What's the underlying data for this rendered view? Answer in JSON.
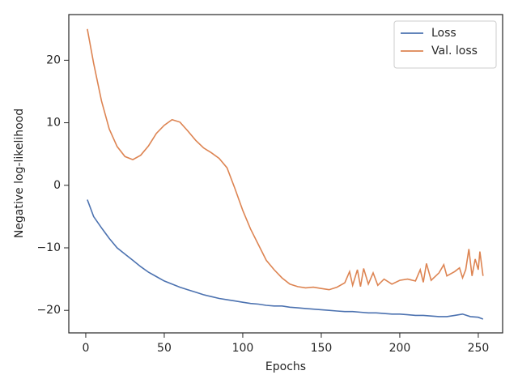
{
  "chart_data": {
    "type": "line",
    "xlabel": "Epochs",
    "ylabel": "Negative log-likelihood",
    "xlim": [
      -10.8,
      265.5
    ],
    "ylim": [
      -23.6,
      27.3
    ],
    "xticks": [
      0,
      50,
      100,
      150,
      200,
      250
    ],
    "yticks": [
      {
        "value": -20,
        "label": "−20"
      },
      {
        "value": -10,
        "label": "−10"
      },
      0,
      10,
      20
    ],
    "legend": "upper right",
    "grid": false,
    "series": [
      {
        "name": "Loss",
        "color": "#4c72b0",
        "x": [
          1,
          5,
          10,
          15,
          20,
          25,
          30,
          35,
          40,
          45,
          50,
          55,
          60,
          65,
          70,
          75,
          80,
          85,
          90,
          95,
          100,
          105,
          110,
          115,
          120,
          125,
          130,
          135,
          140,
          145,
          150,
          155,
          160,
          165,
          170,
          175,
          180,
          185,
          190,
          195,
          200,
          205,
          210,
          215,
          220,
          225,
          230,
          235,
          240,
          245,
          250,
          253
        ],
        "values": [
          -2.3,
          -5.0,
          -6.8,
          -8.5,
          -10.0,
          -11.0,
          -12.0,
          -13.0,
          -13.9,
          -14.6,
          -15.3,
          -15.8,
          -16.3,
          -16.7,
          -17.1,
          -17.5,
          -17.8,
          -18.1,
          -18.3,
          -18.5,
          -18.7,
          -18.9,
          -19.0,
          -19.2,
          -19.3,
          -19.3,
          -19.5,
          -19.6,
          -19.7,
          -19.8,
          -19.9,
          -20.0,
          -20.1,
          -20.2,
          -20.2,
          -20.3,
          -20.4,
          -20.4,
          -20.5,
          -20.6,
          -20.6,
          -20.7,
          -20.8,
          -20.8,
          -20.9,
          -21.0,
          -21.0,
          -20.8,
          -20.6,
          -21.0,
          -21.1,
          -21.4
        ]
      },
      {
        "name": "Val. loss",
        "color": "#dd8452",
        "x": [
          1,
          5,
          10,
          15,
          20,
          25,
          30,
          35,
          40,
          45,
          50,
          55,
          60,
          65,
          70,
          75,
          80,
          85,
          90,
          95,
          100,
          105,
          110,
          115,
          120,
          125,
          130,
          135,
          140,
          145,
          150,
          155,
          160,
          165,
          168,
          170,
          173,
          175,
          177,
          180,
          183,
          186,
          190,
          195,
          200,
          205,
          210,
          213,
          215,
          217,
          220,
          225,
          228,
          230,
          235,
          238,
          240,
          242,
          244,
          246,
          248,
          250,
          251,
          253
        ],
        "values": [
          25,
          19.5,
          13.5,
          9.0,
          6.2,
          4.6,
          4.1,
          4.8,
          6.3,
          8.3,
          9.6,
          10.5,
          10.1,
          8.7,
          7.2,
          6.0,
          5.2,
          4.3,
          2.8,
          -0.5,
          -4.0,
          -7.0,
          -9.5,
          -12.0,
          -13.5,
          -14.8,
          -15.8,
          -16.2,
          -16.4,
          -16.3,
          -16.5,
          -16.7,
          -16.3,
          -15.6,
          -13.8,
          -16.0,
          -13.5,
          -16.2,
          -13.3,
          -15.8,
          -14.0,
          -16.0,
          -15.0,
          -15.8,
          -15.2,
          -15.0,
          -15.3,
          -13.5,
          -15.5,
          -12.5,
          -15.2,
          -14.0,
          -12.7,
          -14.5,
          -13.8,
          -13.2,
          -14.8,
          -13.5,
          -10.2,
          -14.5,
          -11.8,
          -13.5,
          -10.6,
          -14.5
        ]
      }
    ]
  }
}
